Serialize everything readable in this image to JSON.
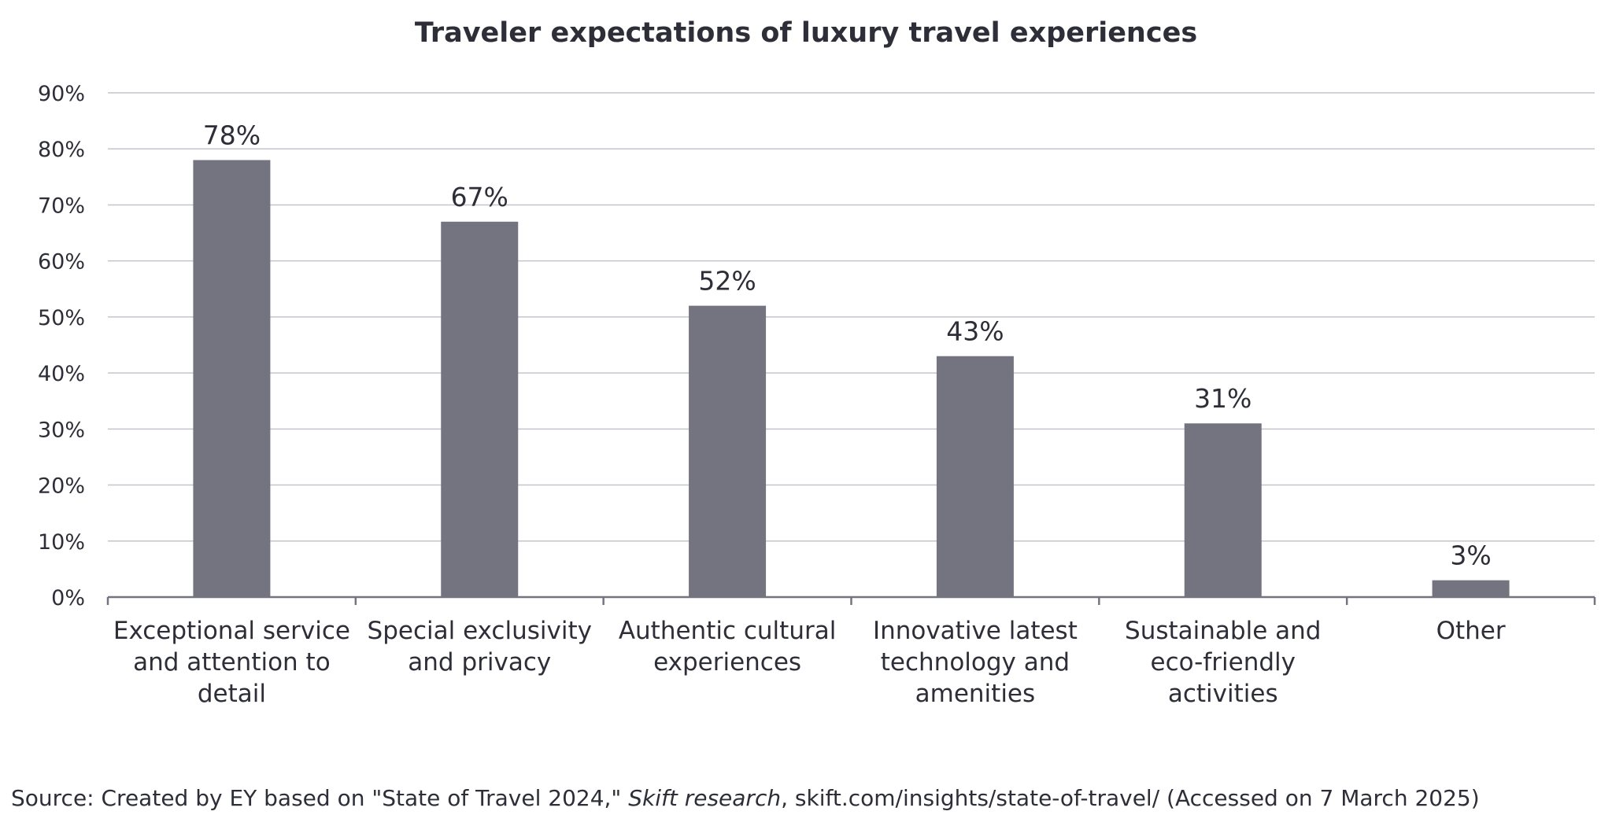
{
  "chart_data": {
    "type": "bar",
    "title": "Traveler expectations of luxury travel experiences",
    "xlabel": "",
    "ylabel": "",
    "categories": [
      [
        "Exceptional service",
        "and attention to",
        "detail"
      ],
      [
        "Special exclusivity",
        "and privacy"
      ],
      [
        "Authentic cultural",
        "experiences"
      ],
      [
        "Innovative latest",
        "technology and",
        "amenities"
      ],
      [
        "Sustainable and",
        "eco-friendly",
        "activities"
      ],
      [
        "Other"
      ]
    ],
    "values": [
      78,
      67,
      52,
      43,
      31,
      3
    ],
    "data_labels": [
      "78%",
      "67%",
      "52%",
      "43%",
      "31%",
      "3%"
    ],
    "ylim": [
      0,
      90
    ],
    "y_ticks": [
      0,
      10,
      20,
      30,
      40,
      50,
      60,
      70,
      80,
      90
    ],
    "y_tick_labels": [
      "0%",
      "10%",
      "20%",
      "30%",
      "40%",
      "50%",
      "60%",
      "70%",
      "80%",
      "90%"
    ],
    "grid": true,
    "legend": "none",
    "bar_color": "#747480",
    "grid_color": "#c4c4cd",
    "axis_color": "#747480"
  },
  "source": {
    "prefix": "Source: Created by EY based on \"State of Travel 2024,\" ",
    "italic": "Skift research",
    "suffix": ", skift.com/insights/state-of-travel/ (Accessed on 7 March 2025)"
  }
}
